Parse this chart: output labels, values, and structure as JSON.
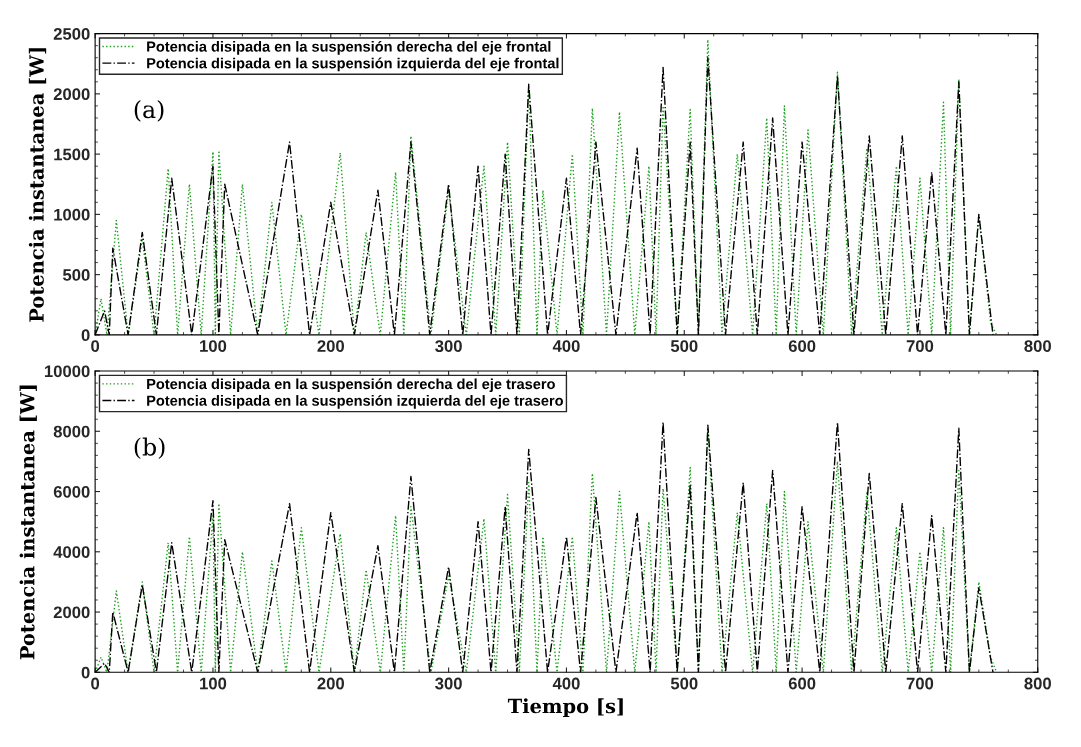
{
  "chart_data": [
    {
      "type": "line",
      "ylabel": "Potencia instantanea [W]",
      "annotations": [
        "(a)"
      ],
      "legend": "top left",
      "grid": false,
      "xlim": [
        0,
        800
      ],
      "xticks": [
        0,
        100,
        200,
        300,
        400,
        500,
        600,
        700,
        800
      ],
      "ylim": [
        0,
        2500
      ],
      "yticks": [
        0,
        500,
        1000,
        1500,
        2000,
        2500
      ],
      "series": [
        {
          "name": "Potencia disipada en la suspensión derecha del eje frontal",
          "color": "#1a9e1a",
          "line_style": "dotted",
          "x": [
            0,
            5,
            10,
            18,
            28,
            40,
            50,
            62,
            70,
            80,
            90,
            100,
            102,
            105,
            115,
            125,
            138,
            150,
            162,
            175,
            190,
            208,
            220,
            230,
            242,
            255,
            262,
            268,
            285,
            300,
            315,
            330,
            340,
            350,
            360,
            368,
            375,
            380,
            392,
            405,
            414,
            422,
            434,
            445,
            458,
            470,
            476,
            482,
            494,
            505,
            512,
            520,
            532,
            545,
            558,
            570,
            578,
            585,
            595,
            605,
            618,
            630,
            642,
            655,
            668,
            680,
            690,
            700,
            710,
            720,
            726,
            733,
            742,
            750,
            760,
            765
          ],
          "values": [
            0,
            300,
            0,
            950,
            0,
            800,
            0,
            1380,
            0,
            1250,
            0,
            1520,
            0,
            1530,
            0,
            1250,
            0,
            1100,
            0,
            1000,
            0,
            1510,
            0,
            850,
            0,
            1350,
            0,
            1650,
            0,
            1200,
            0,
            1400,
            0,
            1600,
            0,
            2050,
            0,
            1200,
            0,
            1500,
            0,
            1880,
            0,
            1850,
            0,
            1400,
            0,
            1900,
            0,
            1870,
            0,
            2450,
            0,
            1500,
            0,
            1800,
            0,
            1900,
            0,
            1700,
            0,
            2180,
            0,
            1550,
            0,
            1400,
            0,
            1300,
            0,
            1930,
            0,
            2120,
            0,
            1000,
            100,
            0
          ]
        },
        {
          "name": "Potencia disipada en la suspensión izquierda del eje frontal",
          "color": "#000000",
          "line_style": "dashdot",
          "x": [
            0,
            8,
            12,
            15,
            28,
            40,
            52,
            65,
            82,
            100,
            105,
            110,
            138,
            165,
            182,
            200,
            220,
            240,
            254,
            268,
            284,
            300,
            312,
            325,
            336,
            348,
            358,
            368,
            384,
            400,
            412,
            425,
            442,
            460,
            471,
            482,
            494,
            505,
            512,
            520,
            535,
            550,
            562,
            575,
            588,
            600,
            615,
            630,
            644,
            657,
            671,
            685,
            698,
            710,
            722,
            733,
            742,
            750,
            762
          ],
          "values": [
            0,
            200,
            0,
            720,
            0,
            850,
            0,
            1300,
            0,
            1400,
            0,
            1250,
            0,
            1600,
            0,
            1100,
            0,
            1200,
            0,
            1600,
            0,
            1250,
            0,
            1400,
            0,
            1500,
            0,
            2080,
            0,
            1300,
            0,
            1600,
            0,
            1550,
            0,
            2220,
            0,
            1600,
            0,
            2300,
            0,
            1600,
            0,
            1800,
            0,
            1600,
            0,
            2150,
            0,
            1650,
            0,
            1650,
            0,
            1350,
            0,
            2100,
            0,
            1000,
            0
          ]
        }
      ]
    },
    {
      "type": "line",
      "xlabel": "Tiempo [s]",
      "ylabel": "Potencia instantanea [W]",
      "annotations": [
        "(b)"
      ],
      "legend": "top left",
      "grid": false,
      "xlim": [
        0,
        800
      ],
      "xticks": [
        0,
        100,
        200,
        300,
        400,
        500,
        600,
        700,
        800
      ],
      "ylim": [
        0,
        10000
      ],
      "yticks": [
        0,
        2000,
        4000,
        6000,
        8000,
        10000
      ],
      "series": [
        {
          "name": "Potencia disipada en la suspensión derecha del eje trasero",
          "color": "#1a9e1a",
          "line_style": "dotted",
          "x": [
            0,
            5,
            10,
            18,
            28,
            40,
            50,
            62,
            70,
            80,
            90,
            100,
            102,
            105,
            115,
            125,
            138,
            150,
            162,
            175,
            190,
            208,
            220,
            230,
            242,
            255,
            262,
            268,
            285,
            300,
            315,
            330,
            340,
            350,
            360,
            368,
            375,
            380,
            392,
            405,
            414,
            422,
            434,
            445,
            458,
            470,
            476,
            482,
            494,
            505,
            512,
            520,
            532,
            545,
            558,
            570,
            578,
            585,
            595,
            605,
            618,
            630,
            642,
            655,
            668,
            680,
            690,
            700,
            710,
            720,
            726,
            733,
            742,
            750,
            760,
            765
          ],
          "values": [
            0,
            500,
            0,
            2700,
            0,
            3000,
            0,
            4300,
            0,
            4500,
            0,
            5200,
            0,
            5600,
            0,
            4000,
            0,
            3700,
            0,
            4800,
            0,
            4600,
            0,
            3400,
            0,
            5200,
            0,
            5500,
            0,
            3200,
            0,
            5100,
            0,
            5900,
            0,
            6300,
            0,
            4500,
            0,
            4500,
            0,
            6600,
            0,
            6000,
            0,
            5000,
            0,
            6100,
            0,
            6800,
            0,
            8100,
            0,
            5300,
            0,
            5600,
            0,
            6000,
            0,
            5000,
            0,
            7000,
            0,
            6000,
            0,
            4800,
            0,
            4000,
            0,
            4800,
            0,
            6700,
            0,
            3000,
            500,
            0
          ]
        },
        {
          "name": "Potencia disipada en la suspensión izquierda del eje trasero",
          "color": "#000000",
          "line_style": "dashdot",
          "x": [
            0,
            8,
            12,
            15,
            28,
            40,
            52,
            65,
            82,
            100,
            105,
            110,
            138,
            165,
            182,
            200,
            220,
            240,
            254,
            268,
            284,
            300,
            312,
            325,
            336,
            348,
            358,
            368,
            384,
            400,
            412,
            425,
            442,
            460,
            471,
            482,
            494,
            505,
            512,
            520,
            535,
            550,
            562,
            575,
            588,
            600,
            615,
            630,
            644,
            657,
            671,
            685,
            698,
            710,
            722,
            733,
            742,
            750,
            762
          ],
          "values": [
            0,
            300,
            0,
            2000,
            0,
            2900,
            0,
            4300,
            0,
            5700,
            0,
            4400,
            0,
            5600,
            0,
            5300,
            0,
            4200,
            0,
            6500,
            0,
            3500,
            0,
            5000,
            0,
            5500,
            0,
            7400,
            0,
            4500,
            0,
            5800,
            0,
            5300,
            0,
            8300,
            0,
            6200,
            0,
            8200,
            0,
            6300,
            0,
            6700,
            0,
            5500,
            0,
            8300,
            0,
            6600,
            0,
            5600,
            0,
            5200,
            0,
            8100,
            0,
            2800,
            0
          ]
        }
      ]
    }
  ]
}
